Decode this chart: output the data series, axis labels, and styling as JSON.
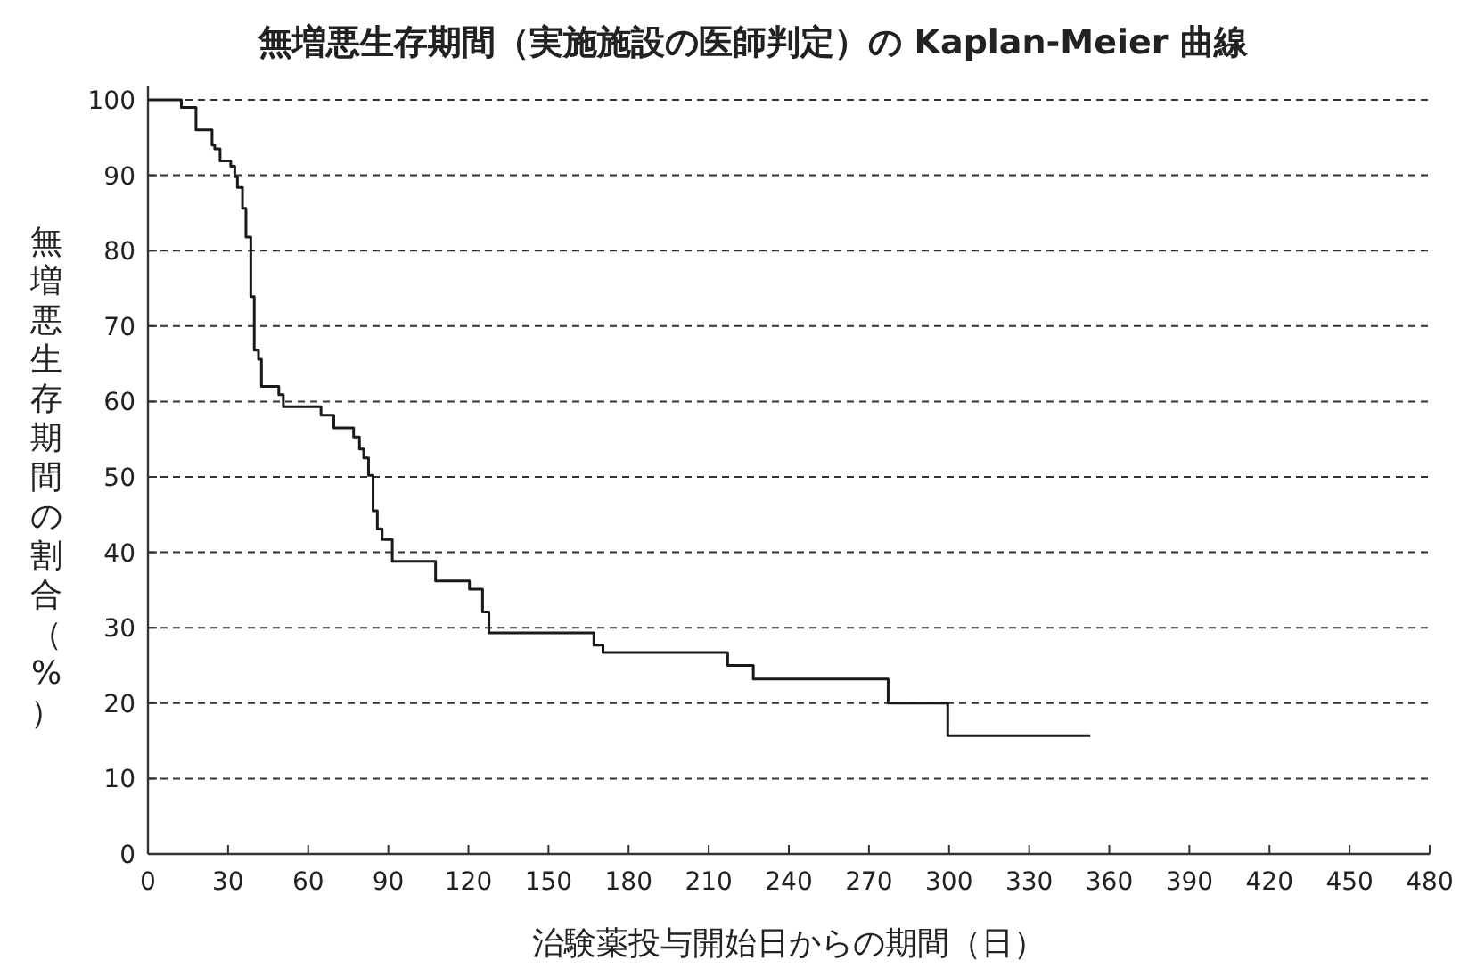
{
  "chart_data": {
    "type": "step",
    "title": "無増悪生存期間（実施施設の医師判定）の Kaplan-Meier 曲線",
    "xlabel": "治験薬投与開始日からの期間（日）",
    "ylabel": "無増悪生存期間の割合（%）",
    "series": [
      {
        "color": "#1a1a1a",
        "x": [
          0,
          12.5,
          18,
          24,
          25,
          27,
          31,
          32.5,
          33.5,
          35.4,
          36.7,
          38.5,
          39.8,
          41.4,
          42.5,
          49,
          50.7,
          64.8,
          69.6,
          77,
          79.2,
          80.8,
          82.6,
          84.3,
          85.9,
          87.7,
          91.5,
          107.7,
          120.4,
          125.3,
          127.7,
          167,
          170.4,
          217.1,
          226.7,
          277.2,
          299.5,
          352.9
        ],
        "values": [
          100,
          99,
          96,
          94,
          93.5,
          91.9,
          91.2,
          89.8,
          88.4,
          85.6,
          81.8,
          73.9,
          66.8,
          65.6,
          62,
          60.9,
          59.3,
          58.2,
          56.5,
          55.3,
          53.7,
          52.5,
          50.2,
          45.5,
          43.1,
          41.7,
          38.8,
          36.2,
          35.1,
          32.1,
          29.3,
          27.7,
          26.7,
          25,
          23.2,
          20,
          15.7,
          15.7
        ]
      }
    ],
    "xlim": [
      0,
      480
    ],
    "xticks": [
      0,
      30,
      60,
      90,
      120,
      150,
      180,
      210,
      240,
      270,
      300,
      330,
      360,
      390,
      420,
      450,
      480
    ],
    "ylim": [
      0,
      100
    ],
    "yticks": [
      0,
      10,
      20,
      30,
      40,
      50,
      60,
      70,
      80,
      90,
      100
    ],
    "grid": "y",
    "line_style": "solid"
  }
}
